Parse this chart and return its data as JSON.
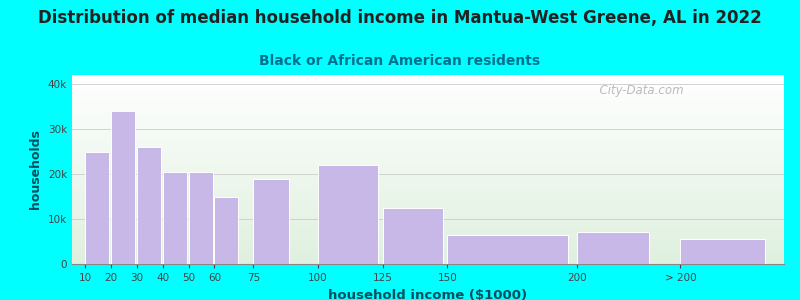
{
  "title": "Distribution of median household income in Mantua-West Greene, AL in 2022",
  "subtitle": "Black or African American residents",
  "xlabel": "household income ($1000)",
  "ylabel": "households",
  "bar_labels": [
    "10",
    "20",
    "30",
    "40",
    "50",
    "60",
    "75",
    "100",
    "125",
    "150",
    "200",
    "> 200"
  ],
  "bar_values": [
    25000,
    34000,
    26000,
    20500,
    20500,
    15000,
    19000,
    22000,
    12500,
    6500,
    7200,
    5500
  ],
  "bar_color": "#c8b8e8",
  "bar_edge_color": "#ffffff",
  "background_color": "#00ffff",
  "plot_bg_top": "#dff0df",
  "plot_bg_bottom": "#ffffff",
  "title_color": "#222222",
  "subtitle_color": "#007090",
  "axis_label_color": "#005060",
  "tick_color": "#444444",
  "ylim": [
    0,
    42000
  ],
  "yticks": [
    0,
    10000,
    20000,
    30000,
    40000
  ],
  "title_fontsize": 12,
  "subtitle_fontsize": 10,
  "xlabel_fontsize": 9.5,
  "ylabel_fontsize": 9,
  "watermark_text": "  City-Data.com",
  "watermark_color": "#aaaaaa",
  "x_positions": [
    10,
    20,
    30,
    40,
    50,
    60,
    75,
    100,
    125,
    150,
    200,
    240
  ],
  "bar_widths": [
    10,
    10,
    10,
    10,
    10,
    10,
    15,
    25,
    25,
    50,
    30,
    35
  ],
  "xlim": [
    5,
    280
  ]
}
